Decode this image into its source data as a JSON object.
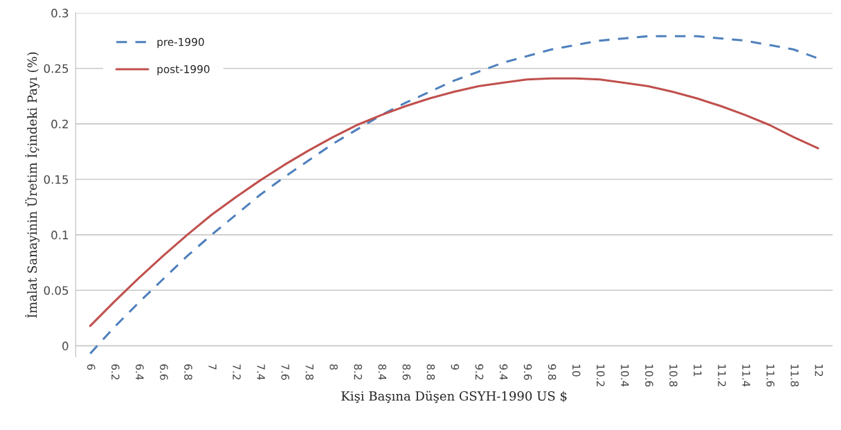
{
  "chart_data": {
    "type": "line",
    "xlabel": "Kişi Başına Düşen GSYH-1990 US $",
    "ylabel": "İmalat Sanayinin Üretim İçindeki Payı (%)",
    "categories": [
      "6",
      "6.2",
      "6.4",
      "6.6",
      "6.8",
      "7",
      "7.2",
      "7.4",
      "7.6",
      "7.8",
      "8",
      "8.2",
      "8.4",
      "8.6",
      "8.8",
      "9",
      "9.2",
      "9.4",
      "9.6",
      "9.8",
      "10",
      "10.2",
      "10.4",
      "10.6",
      "10.8",
      "11",
      "11.2",
      "11.4",
      "11.6",
      "11.8",
      "12"
    ],
    "series": [
      {
        "name": "pre-1990",
        "color": "#4f81bd",
        "line_style": "dashed",
        "values": [
          -0.007,
          0.017,
          0.039,
          0.06,
          0.081,
          0.1,
          0.118,
          0.136,
          0.152,
          0.167,
          0.182,
          0.195,
          0.208,
          0.219,
          0.229,
          0.239,
          0.247,
          0.255,
          0.261,
          0.267,
          0.271,
          0.275,
          0.277,
          0.279,
          0.279,
          0.279,
          0.277,
          0.275,
          0.271,
          0.267,
          0.259
        ]
      },
      {
        "name": "post-1990",
        "color": "#c0504d",
        "line_style": "solid",
        "values": [
          0.018,
          0.04,
          0.061,
          0.081,
          0.1,
          0.118,
          0.134,
          0.149,
          0.163,
          0.176,
          0.188,
          0.199,
          0.208,
          0.216,
          0.223,
          0.229,
          0.234,
          0.237,
          0.24,
          0.241,
          0.241,
          0.24,
          0.237,
          0.234,
          0.229,
          0.223,
          0.216,
          0.208,
          0.199,
          0.188,
          0.178
        ]
      }
    ],
    "ylim": [
      -0.01,
      0.3
    ],
    "yticks": [
      0,
      0.05,
      0.1,
      0.15,
      0.2,
      0.25,
      0.3
    ],
    "grid": "y",
    "legend": "top left",
    "marker": "none"
  }
}
